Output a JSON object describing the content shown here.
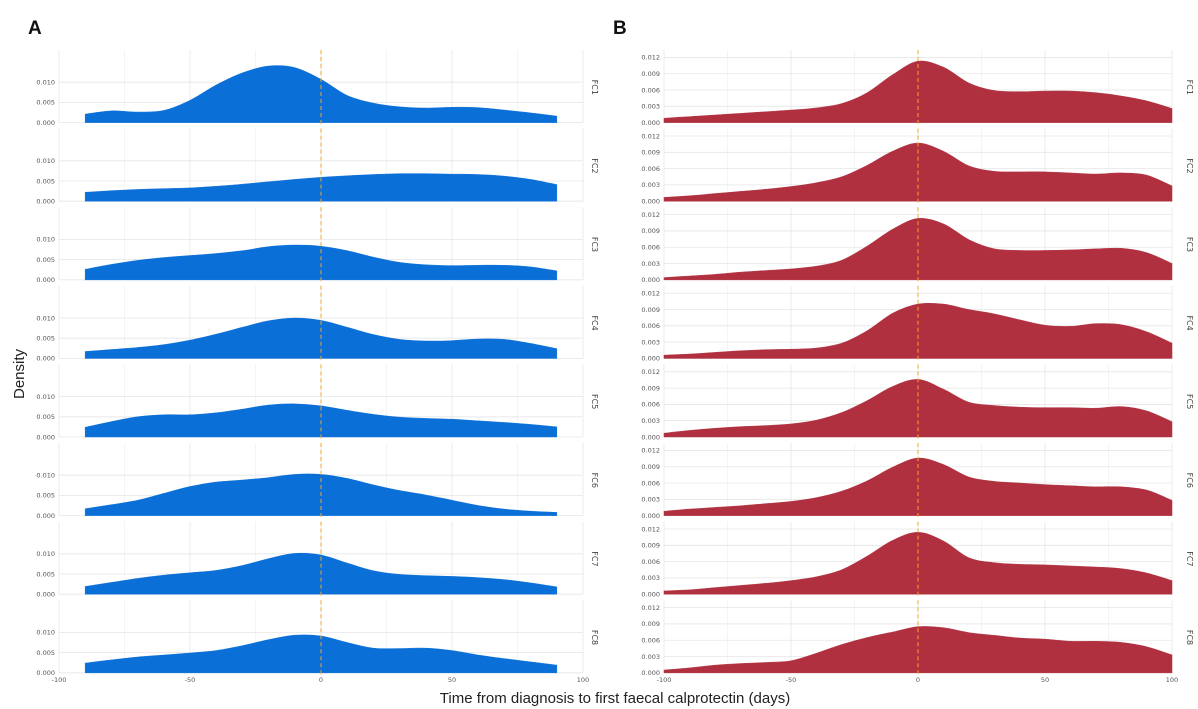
{
  "figure": {
    "ylabel": "Density",
    "xlabel": "Time from diagnosis to first faecal calprotectin (days)"
  },
  "chart_data": [
    {
      "type": "area",
      "panel": "A",
      "color": "#0a6fd6",
      "reference_line": {
        "x": 0,
        "color": "#f5a623",
        "style": "dashed"
      },
      "xlim": [
        -100,
        100
      ],
      "x_ticks": [
        "-100",
        "-50",
        "0",
        "50",
        "100"
      ],
      "ylim": [
        0,
        0.015
      ],
      "y_ticks": [
        "0.000",
        "0.005",
        "0.010"
      ],
      "y_tick_values": [
        0,
        0.005,
        0.01
      ],
      "x": [
        -90,
        -80,
        -70,
        -60,
        -50,
        -40,
        -30,
        -20,
        -10,
        0,
        10,
        20,
        30,
        40,
        50,
        60,
        70,
        80,
        90
      ],
      "series": [
        {
          "name": "FC1",
          "values": [
            0.0021,
            0.0029,
            0.0026,
            0.003,
            0.0055,
            0.0093,
            0.0123,
            0.014,
            0.0136,
            0.0107,
            0.0067,
            0.0048,
            0.0039,
            0.0036,
            0.0038,
            0.0037,
            0.0031,
            0.0024,
            0.0016
          ]
        },
        {
          "name": "FC2",
          "values": [
            0.0022,
            0.0026,
            0.0029,
            0.0031,
            0.0033,
            0.0037,
            0.0042,
            0.0048,
            0.0054,
            0.0059,
            0.0063,
            0.0066,
            0.0068,
            0.0068,
            0.0067,
            0.0066,
            0.0062,
            0.0054,
            0.0041
          ]
        },
        {
          "name": "FC3",
          "values": [
            0.0026,
            0.0038,
            0.0048,
            0.0055,
            0.006,
            0.0065,
            0.0072,
            0.0082,
            0.0086,
            0.0083,
            0.0072,
            0.0056,
            0.0043,
            0.0037,
            0.0035,
            0.0036,
            0.0036,
            0.0032,
            0.0022
          ]
        },
        {
          "name": "FC4",
          "values": [
            0.0017,
            0.0022,
            0.0027,
            0.0034,
            0.0045,
            0.006,
            0.0077,
            0.0093,
            0.01,
            0.0094,
            0.0077,
            0.0059,
            0.0047,
            0.0043,
            0.0044,
            0.0048,
            0.0047,
            0.0037,
            0.0024
          ]
        },
        {
          "name": "FC5",
          "values": [
            0.0024,
            0.0038,
            0.005,
            0.0055,
            0.0055,
            0.006,
            0.0069,
            0.0079,
            0.0082,
            0.0077,
            0.0066,
            0.0056,
            0.0049,
            0.0046,
            0.0044,
            0.004,
            0.0036,
            0.0031,
            0.0025
          ]
        },
        {
          "name": "FC6",
          "values": [
            0.0017,
            0.0027,
            0.0038,
            0.0055,
            0.0072,
            0.0083,
            0.0088,
            0.0094,
            0.0102,
            0.0102,
            0.0092,
            0.0076,
            0.0062,
            0.0051,
            0.0038,
            0.0025,
            0.0016,
            0.0011,
            0.0008
          ]
        },
        {
          "name": "FC7",
          "values": [
            0.0019,
            0.0029,
            0.0039,
            0.0047,
            0.0053,
            0.0059,
            0.0071,
            0.0088,
            0.0101,
            0.0097,
            0.0077,
            0.0058,
            0.0049,
            0.0046,
            0.0044,
            0.0041,
            0.0036,
            0.0028,
            0.0018
          ]
        },
        {
          "name": "FC8",
          "values": [
            0.0024,
            0.0032,
            0.0039,
            0.0044,
            0.0049,
            0.0055,
            0.0067,
            0.0082,
            0.0093,
            0.0091,
            0.0075,
            0.0061,
            0.006,
            0.0061,
            0.0055,
            0.0044,
            0.0035,
            0.0027,
            0.0019
          ]
        }
      ]
    },
    {
      "type": "area",
      "panel": "B",
      "color": "#b03040",
      "reference_line": {
        "x": 0,
        "color": "#f5a623",
        "style": "dashed"
      },
      "xlim": [
        -100,
        100
      ],
      "x_ticks": [
        "-100",
        "-50",
        "0",
        "50",
        "100"
      ],
      "ylim": [
        0,
        0.013
      ],
      "y_ticks": [
        "0.000",
        "0.003",
        "0.006",
        "0.009",
        "0.012"
      ],
      "y_tick_values": [
        0,
        0.003,
        0.006,
        0.009,
        0.012
      ],
      "x": [
        -100,
        -90,
        -80,
        -70,
        -60,
        -50,
        -40,
        -30,
        -20,
        -10,
        0,
        10,
        20,
        30,
        40,
        50,
        60,
        70,
        80,
        90,
        100
      ],
      "series": [
        {
          "name": "FC1",
          "values": [
            0.0008,
            0.0011,
            0.0014,
            0.0017,
            0.002,
            0.0023,
            0.0027,
            0.0035,
            0.0055,
            0.0088,
            0.0113,
            0.0102,
            0.0073,
            0.0059,
            0.0057,
            0.0058,
            0.0058,
            0.0055,
            0.0049,
            0.004,
            0.0026
          ]
        },
        {
          "name": "FC2",
          "values": [
            0.0007,
            0.001,
            0.0014,
            0.0018,
            0.0022,
            0.0027,
            0.0034,
            0.0045,
            0.0066,
            0.0092,
            0.0107,
            0.0092,
            0.0065,
            0.0055,
            0.0054,
            0.0054,
            0.0052,
            0.005,
            0.0052,
            0.0048,
            0.0028
          ]
        },
        {
          "name": "FC3",
          "values": [
            0.0004,
            0.0007,
            0.001,
            0.0014,
            0.0017,
            0.002,
            0.0025,
            0.0036,
            0.0062,
            0.0093,
            0.0113,
            0.0103,
            0.0074,
            0.0057,
            0.0054,
            0.0054,
            0.0055,
            0.0057,
            0.0058,
            0.005,
            0.003
          ]
        },
        {
          "name": "FC4",
          "values": [
            0.0006,
            0.0008,
            0.0011,
            0.0014,
            0.0016,
            0.0017,
            0.0019,
            0.0028,
            0.0051,
            0.0083,
            0.01,
            0.01,
            0.009,
            0.0082,
            0.0071,
            0.0061,
            0.0059,
            0.0064,
            0.0062,
            0.0049,
            0.0028
          ]
        },
        {
          "name": "FC5",
          "values": [
            0.0007,
            0.0012,
            0.0016,
            0.0019,
            0.0021,
            0.0024,
            0.0031,
            0.0045,
            0.0067,
            0.0093,
            0.0106,
            0.0088,
            0.0064,
            0.0058,
            0.0055,
            0.0054,
            0.0054,
            0.0053,
            0.0056,
            0.0048,
            0.0028
          ]
        },
        {
          "name": "FC6",
          "values": [
            0.0008,
            0.0012,
            0.0015,
            0.0018,
            0.0022,
            0.0026,
            0.0033,
            0.0045,
            0.0064,
            0.0089,
            0.0106,
            0.0094,
            0.0071,
            0.0063,
            0.006,
            0.0057,
            0.0055,
            0.0053,
            0.0053,
            0.0047,
            0.0028
          ]
        },
        {
          "name": "FC7",
          "values": [
            0.0006,
            0.0008,
            0.0012,
            0.0016,
            0.002,
            0.0025,
            0.0032,
            0.0045,
            0.007,
            0.0099,
            0.0114,
            0.0098,
            0.0067,
            0.0058,
            0.0055,
            0.0054,
            0.0052,
            0.005,
            0.0047,
            0.0039,
            0.0025
          ]
        },
        {
          "name": "FC8",
          "values": [
            0.0005,
            0.0009,
            0.0014,
            0.0017,
            0.0019,
            0.0022,
            0.0036,
            0.0052,
            0.0065,
            0.0075,
            0.0085,
            0.0083,
            0.0074,
            0.0069,
            0.0064,
            0.0062,
            0.0058,
            0.0058,
            0.0056,
            0.0048,
            0.0033
          ]
        }
      ]
    }
  ]
}
